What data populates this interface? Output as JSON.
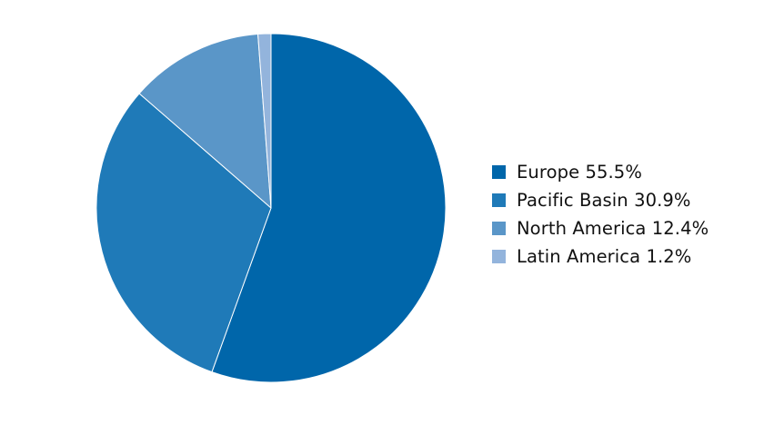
{
  "chart_data": {
    "type": "pie",
    "title": "",
    "legend_position": "right",
    "start": "12 o'clock, clockwise",
    "slices": [
      {
        "label": "Europe",
        "value": 55.5,
        "display": "55.5%",
        "color": "#0066aa"
      },
      {
        "label": "Pacific Basin",
        "value": 30.9,
        "display": "30.9%",
        "color": "#1f7ab8"
      },
      {
        "label": "North America",
        "value": 12.4,
        "display": "12.4%",
        "color": "#5a96c8"
      },
      {
        "label": "Latin America",
        "value": 1.2,
        "display": "1.2%",
        "color": "#93b4dc"
      }
    ]
  }
}
